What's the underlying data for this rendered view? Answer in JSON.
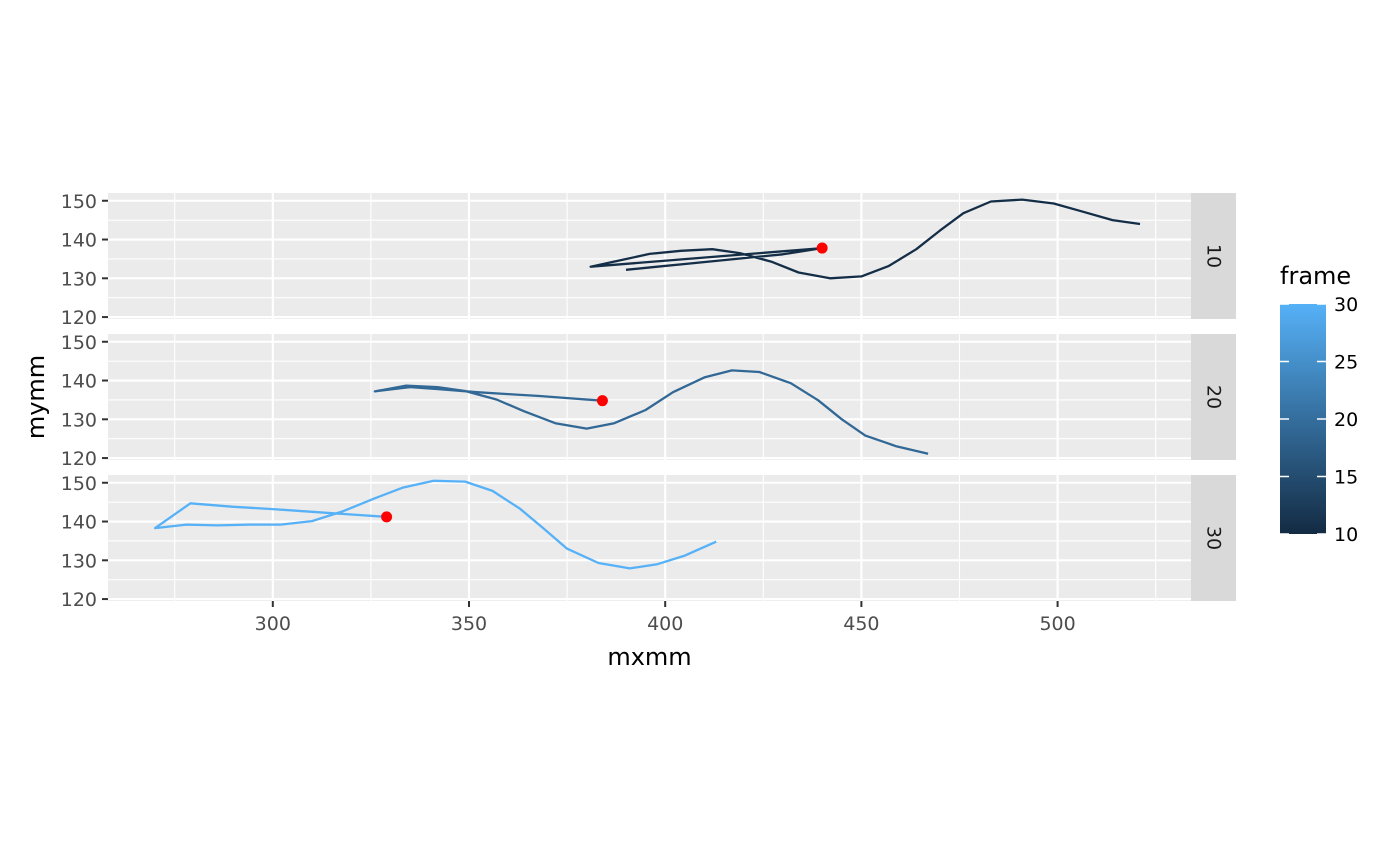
{
  "chart_data": {
    "type": "line",
    "xlabel": "mxmm",
    "ylabel": "mymm",
    "xlim": [
      258,
      534
    ],
    "ylim": [
      119.5,
      152
    ],
    "x_ticks": [
      300,
      350,
      400,
      450,
      500
    ],
    "y_ticks": [
      120,
      130,
      140,
      150
    ],
    "grid": true,
    "legend": {
      "title": "frame",
      "type": "colorbar",
      "placement": "right",
      "range": [
        10,
        30
      ],
      "ticks": [
        10,
        15,
        20,
        25,
        30
      ],
      "colors": {
        "low": "#132B43",
        "high": "#56B1F7"
      }
    },
    "facets": [
      {
        "label": "10",
        "color": "#152E47",
        "path": [
          [
            390,
            132.2
          ],
          [
            398,
            133.0
          ],
          [
            406,
            133.8
          ],
          [
            414,
            134.6
          ],
          [
            422,
            135.4
          ],
          [
            430,
            136.2
          ],
          [
            440,
            137.8
          ],
          [
            381,
            133.0
          ],
          [
            388,
            134.5
          ],
          [
            396,
            136.3
          ],
          [
            404,
            137.1
          ],
          [
            412,
            137.5
          ],
          [
            419,
            136.5
          ],
          [
            427,
            134.3
          ],
          [
            434,
            131.5
          ],
          [
            442,
            130.0
          ],
          [
            450,
            130.5
          ],
          [
            457,
            133.2
          ],
          [
            464,
            137.5
          ],
          [
            470,
            142.3
          ],
          [
            476,
            146.8
          ],
          [
            483,
            149.8
          ],
          [
            491,
            150.3
          ],
          [
            499,
            149.3
          ],
          [
            506,
            147.3
          ],
          [
            514,
            145.0
          ],
          [
            521,
            144.0
          ]
        ],
        "point": [
          440,
          137.8
        ]
      },
      {
        "label": "20",
        "color": "#326895",
        "path": [
          [
            384,
            134.8
          ],
          [
            376,
            135.4
          ],
          [
            368,
            136.0
          ],
          [
            360,
            136.5
          ],
          [
            352,
            137.0
          ],
          [
            343,
            137.7
          ],
          [
            335,
            138.3
          ],
          [
            326,
            137.2
          ],
          [
            334,
            138.7
          ],
          [
            342,
            138.3
          ],
          [
            349,
            137.3
          ],
          [
            357,
            135.1
          ],
          [
            364,
            132.1
          ],
          [
            372,
            129.0
          ],
          [
            380,
            127.6
          ],
          [
            387,
            129.0
          ],
          [
            395,
            132.4
          ],
          [
            402,
            137.0
          ],
          [
            410,
            140.8
          ],
          [
            417,
            142.6
          ],
          [
            424,
            142.2
          ],
          [
            432,
            139.3
          ],
          [
            439,
            134.9
          ],
          [
            445,
            130.0
          ],
          [
            451,
            125.8
          ],
          [
            459,
            123.0
          ],
          [
            467,
            121.1
          ]
        ],
        "point": [
          384,
          134.8
        ]
      },
      {
        "label": "30",
        "color": "#56B1F7",
        "path": [
          [
            329,
            141.2
          ],
          [
            320,
            141.8
          ],
          [
            310,
            142.5
          ],
          [
            300,
            143.2
          ],
          [
            290,
            143.8
          ],
          [
            279,
            144.7
          ],
          [
            270,
            138.3
          ],
          [
            278,
            139.2
          ],
          [
            286,
            139.0
          ],
          [
            294,
            139.2
          ],
          [
            302,
            139.2
          ],
          [
            310,
            140.1
          ],
          [
            318,
            142.7
          ],
          [
            326,
            146.0
          ],
          [
            333,
            148.7
          ],
          [
            341,
            150.5
          ],
          [
            349,
            150.3
          ],
          [
            356,
            147.9
          ],
          [
            363,
            143.3
          ],
          [
            369,
            138.2
          ],
          [
            375,
            133.0
          ],
          [
            383,
            129.3
          ],
          [
            391,
            127.9
          ],
          [
            398,
            129.0
          ],
          [
            405,
            131.2
          ],
          [
            413,
            134.8
          ]
        ],
        "point": [
          329,
          141.2
        ]
      }
    ],
    "point_color": "#FF0000"
  }
}
